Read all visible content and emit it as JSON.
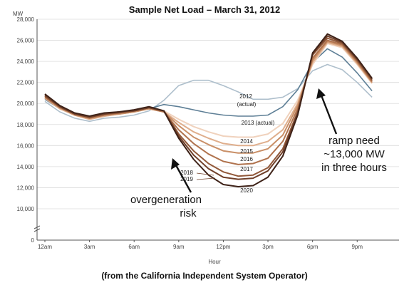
{
  "chart_data": {
    "type": "line",
    "title": "Sample Net Load – March 31, 2012",
    "caption": "(from the California Independent System Operator)",
    "ylabel": "MW",
    "xlabel": "Hour",
    "ylim": [
      10000,
      28000
    ],
    "y_zero_tick": "0",
    "y_ticks": [
      10000,
      12000,
      14000,
      16000,
      18000,
      20000,
      22000,
      24000,
      26000,
      28000
    ],
    "y_tick_labels": [
      "10,000",
      "12,000",
      "14,000",
      "16,000",
      "18,000",
      "20,000",
      "22,000",
      "24,000",
      "26,000",
      "28,000"
    ],
    "x_tick_labels": [
      "12am",
      "3am",
      "6am",
      "9am",
      "12pm",
      "3pm",
      "6pm",
      "9pm"
    ],
    "x_tick_hours": [
      0,
      3,
      6,
      9,
      12,
      15,
      18,
      21
    ],
    "x": [
      0,
      1,
      2,
      3,
      4,
      5,
      6,
      7,
      8,
      9,
      10,
      11,
      12,
      13,
      14,
      15,
      16,
      17,
      18,
      19,
      20,
      21,
      22,
      23
    ],
    "series": [
      {
        "name": "2012 (actual)",
        "color": "#aebfcc",
        "values": [
          20200,
          19200,
          18600,
          18300,
          18600,
          18700,
          18900,
          19300,
          20300,
          21700,
          22200,
          22200,
          21700,
          21100,
          20400,
          20400,
          20600,
          21400,
          23100,
          23700,
          23200,
          22000,
          20600,
          null
        ]
      },
      {
        "name": "2013 (actual)",
        "color": "#5e7f96",
        "values": [
          20400,
          19500,
          18900,
          18600,
          18900,
          19000,
          19200,
          19500,
          19900,
          19700,
          19400,
          19100,
          18900,
          18800,
          18800,
          18900,
          19700,
          21300,
          23900,
          25200,
          24400,
          22900,
          21200,
          null
        ]
      },
      {
        "name": "2014",
        "color": "#f0d2bd",
        "values": [
          20500,
          19500,
          18900,
          18500,
          18800,
          19000,
          19200,
          19500,
          19300,
          18500,
          17800,
          17300,
          16900,
          16800,
          16800,
          17100,
          18100,
          20300,
          23700,
          25700,
          25300,
          23700,
          21900,
          null
        ]
      },
      {
        "name": "2015",
        "color": "#dfae8c",
        "values": [
          20500,
          19500,
          18900,
          18500,
          18800,
          19000,
          19200,
          19500,
          19200,
          18200,
          17300,
          16700,
          16200,
          16000,
          16000,
          16400,
          17500,
          20000,
          23900,
          25800,
          25400,
          23800,
          22000,
          null
        ]
      },
      {
        "name": "2016",
        "color": "#c98f67",
        "values": [
          20600,
          19600,
          18900,
          18600,
          18900,
          19000,
          19200,
          19500,
          19200,
          17900,
          16800,
          16100,
          15500,
          15300,
          15300,
          15700,
          17000,
          19800,
          24100,
          25900,
          25500,
          23900,
          22000,
          null
        ]
      },
      {
        "name": "2017",
        "color": "#b0734e",
        "values": [
          20600,
          19600,
          19000,
          18600,
          18900,
          19100,
          19300,
          19600,
          19200,
          17500,
          16200,
          15200,
          14500,
          14200,
          14300,
          14800,
          16400,
          19500,
          24300,
          26000,
          25600,
          24000,
          22100,
          null
        ]
      },
      {
        "name": "2018",
        "color": "#92593a",
        "values": [
          20700,
          19700,
          19000,
          18700,
          19000,
          19100,
          19300,
          19600,
          19300,
          17100,
          15500,
          14300,
          13500,
          13100,
          13200,
          13900,
          15700,
          19200,
          24600,
          26200,
          25700,
          24100,
          22200,
          null
        ]
      },
      {
        "name": "2019",
        "color": "#70402a",
        "values": [
          20800,
          19700,
          19000,
          18700,
          19000,
          19200,
          19300,
          19600,
          19300,
          16900,
          15100,
          13800,
          13000,
          12800,
          12900,
          13600,
          15400,
          19100,
          24700,
          26400,
          25800,
          24200,
          22300,
          null
        ]
      },
      {
        "name": "2020",
        "color": "#3e2218",
        "values": [
          20900,
          19800,
          19100,
          18800,
          19100,
          19200,
          19400,
          19700,
          19300,
          16700,
          14700,
          13200,
          12300,
          12100,
          12200,
          13000,
          15000,
          18900,
          24800,
          26600,
          25900,
          24300,
          22400,
          null
        ]
      }
    ],
    "annotations": {
      "ramp_line1": "ramp need",
      "ramp_line2": "~13,000 MW",
      "ramp_line3": "in three hours",
      "overgen_line1": "overgeneration",
      "overgen_line2": "risk"
    },
    "grid": "horizontal",
    "legend": "none"
  }
}
